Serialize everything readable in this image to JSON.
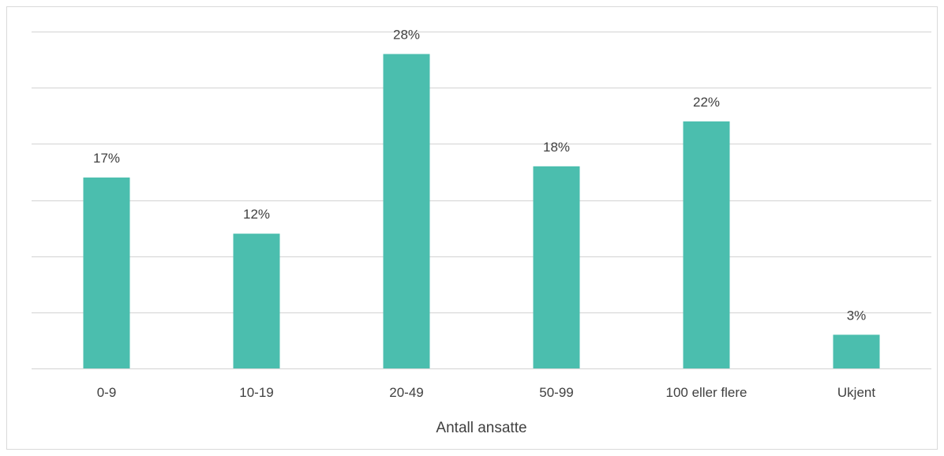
{
  "chart_data": {
    "type": "bar",
    "categories": [
      "0-9",
      "10-19",
      "20-49",
      "50-99",
      "100 eller flere",
      "Ukjent"
    ],
    "values": [
      17,
      12,
      28,
      18,
      22,
      3
    ],
    "data_labels": [
      "17%",
      "12%",
      "28%",
      "18%",
      "22%",
      "3%"
    ],
    "xlabel": "Antall ansatte",
    "ylabel": "",
    "ylim": [
      0,
      30
    ],
    "grid": true,
    "legend": "none",
    "colors": {
      "bar": "#4bbeae",
      "grid": "#d9d9d9",
      "text": "#404040"
    }
  }
}
